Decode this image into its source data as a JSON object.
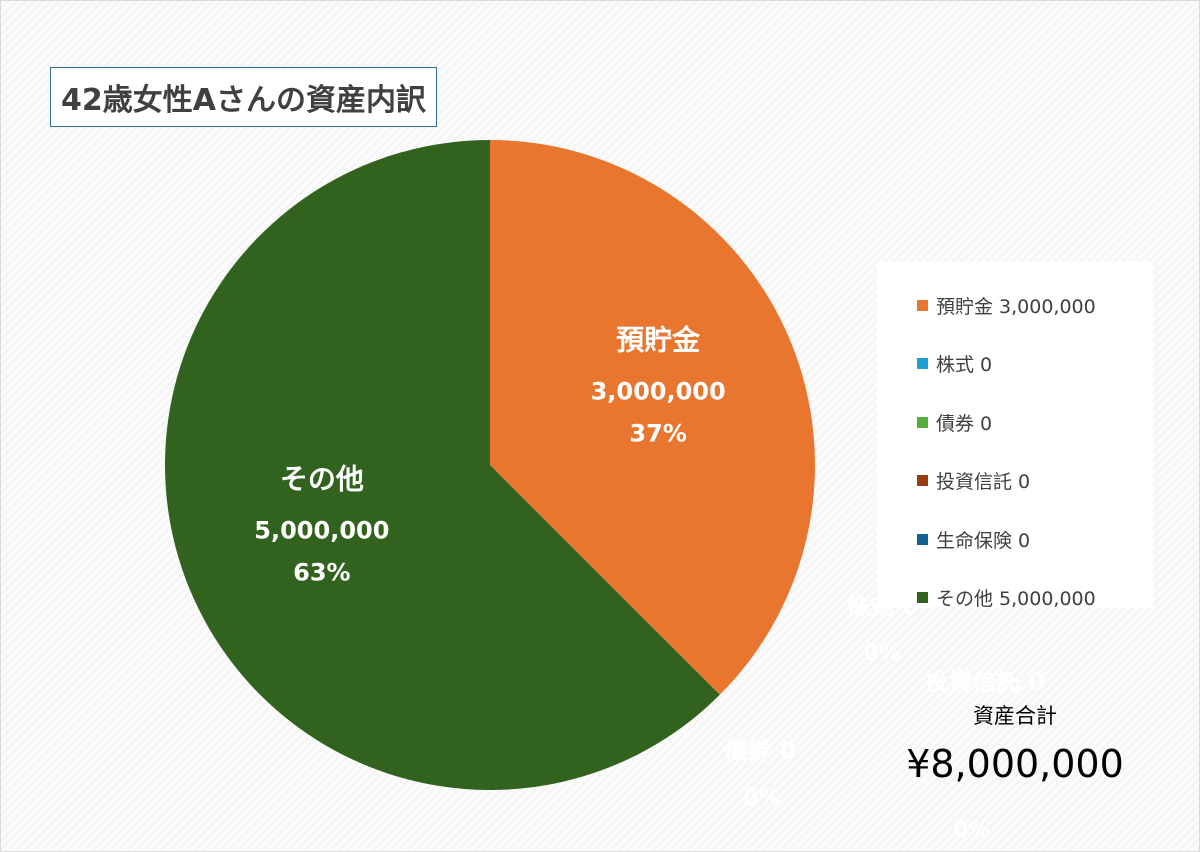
{
  "chart_data": {
    "type": "pie",
    "title": "42歳女性Aさんの資産内訳",
    "slices": [
      {
        "name": "預貯金",
        "value": 3000000,
        "value_label": "3,000,000",
        "percent_label": "37%",
        "color": "#E8762F"
      },
      {
        "name": "株式",
        "value": 0,
        "value_label": "0",
        "percent_label": "0%",
        "color": "#1F9ED1"
      },
      {
        "name": "債券",
        "value": 0,
        "value_label": "0",
        "percent_label": "0%",
        "color": "#55AE3A"
      },
      {
        "name": "投資信託",
        "value": 0,
        "value_label": "0",
        "percent_label": "0%",
        "color": "#9A3D13"
      },
      {
        "name": "生命保険",
        "value": 0,
        "value_label": "0",
        "percent_label": "0%",
        "color": "#12618C"
      },
      {
        "name": "その他",
        "value": 5000000,
        "value_label": "5,000,000",
        "percent_label": "63%",
        "color": "#31631F"
      }
    ],
    "legend_position": "right"
  },
  "legend_entries": [
    "預貯金 3,000,000",
    "株式 0",
    "債券 0",
    "投資信託 0",
    "生命保険 0",
    "その他 5,000,000"
  ],
  "zero_labels": [
    {
      "name": "株式 0",
      "percent": "0%"
    },
    {
      "name": "債券 0",
      "percent": "0%"
    },
    {
      "name": "投資信託 0",
      "percent": "0%"
    },
    {
      "name": "生命保険 0",
      "percent": "0%"
    }
  ],
  "total": {
    "label": "資産合計",
    "value": "¥8,000,000"
  }
}
